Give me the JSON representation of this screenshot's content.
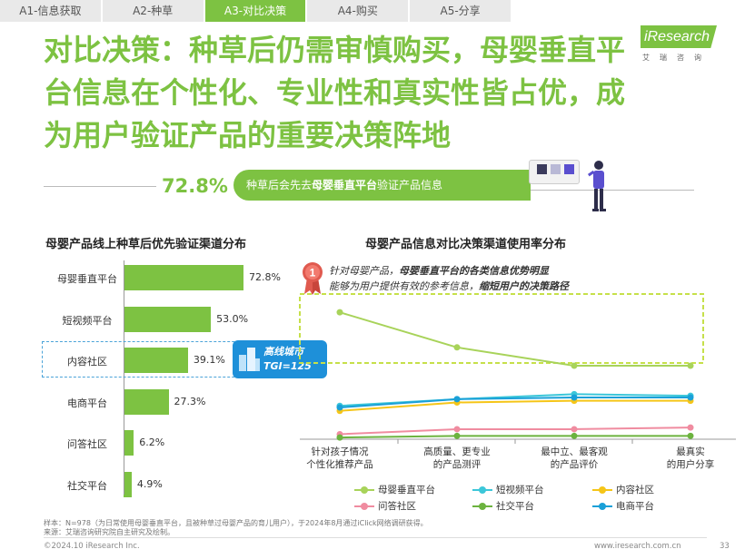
{
  "tabs": [
    "A1-信息获取",
    "A2-种草",
    "A3-对比决策",
    "A4-购买",
    "A5-分享"
  ],
  "active_tab": "A3-对比决策",
  "logo": {
    "text": "iResearch",
    "sub": "艾瑞咨询"
  },
  "title": "对比决策：种草后仍需审慎购买，母婴垂直平台信息在个性化、专业性和真实性皆占优，成为用户验证产品的重要决策阵地",
  "kpi": {
    "value": "72.8%",
    "text_before": "种草后会先去",
    "text_bold": "母婴垂直平台",
    "text_after": "验证产品信息"
  },
  "colors": {
    "accent": "#7dc242",
    "blue": "#1e90d9"
  },
  "left_chart": {
    "title": "母婴产品线上种草后优先验证渠道分布"
  },
  "tgi": {
    "line1": "高线城市",
    "line2": "TGI=125"
  },
  "right_chart": {
    "title": "母婴产品信息对比决策渠道使用率分布"
  },
  "note": {
    "badge": "1",
    "line1_a": "针对母婴产品，",
    "line1_b": "母婴垂直平台的各类信息优势明显",
    "line2_a": "能够为用户提供有效的参考信息，",
    "line2_b": "缩短用户的决策路径"
  },
  "footer": {
    "sample": "样本：N=978（为日常使用母婴垂直平台，且被种草过母婴产品的育儿用户），于2024年8月通过iClick网络调研获得。",
    "source": "来源：艾瑞咨询研究院自主研究及绘制。",
    "copyright": "©2024.10 iResearch Inc.",
    "site": "www.iresearch.com.cn",
    "page": "33"
  },
  "chart_data": [
    {
      "type": "bar",
      "title": "母婴产品线上种草后优先验证渠道分布",
      "categories": [
        "母婴垂直平台",
        "短视频平台",
        "内容社区",
        "电商平台",
        "问答社区",
        "社交平台"
      ],
      "values": [
        72.8,
        53.0,
        39.1,
        27.3,
        6.2,
        4.9
      ],
      "value_labels": [
        "72.8%",
        "53.0%",
        "39.1%",
        "27.3%",
        "6.2%",
        "4.9%"
      ],
      "orientation": "horizontal",
      "highlight": "内容社区"
    },
    {
      "type": "line",
      "title": "母婴产品信息对比决策渠道使用率分布",
      "categories": [
        "针对孩子情况\n个性化推荐产品",
        "高质量、更专业\n的产品测评",
        "最中立、最客观\n的产品评价",
        "最真实\n的用户分享"
      ],
      "ylim": [
        0,
        100
      ],
      "legend_position": "bottom",
      "series": [
        {
          "name": "母婴垂直平台",
          "color": "#a8d35a",
          "values": [
            76,
            55,
            44,
            44
          ]
        },
        {
          "name": "短视频平台",
          "color": "#3cc7d9",
          "values": [
            20,
            24,
            27,
            26
          ]
        },
        {
          "name": "内容社区",
          "color": "#f5c518",
          "values": [
            17,
            22,
            23,
            23
          ]
        },
        {
          "name": "问答社区",
          "color": "#f08ca0",
          "values": [
            3,
            6,
            6,
            7
          ]
        },
        {
          "name": "社交平台",
          "color": "#6cb33f",
          "values": [
            1,
            2,
            2,
            2
          ]
        },
        {
          "name": "电商平台",
          "color": "#1aa0d8",
          "values": [
            19,
            24,
            25,
            25
          ]
        }
      ]
    }
  ]
}
